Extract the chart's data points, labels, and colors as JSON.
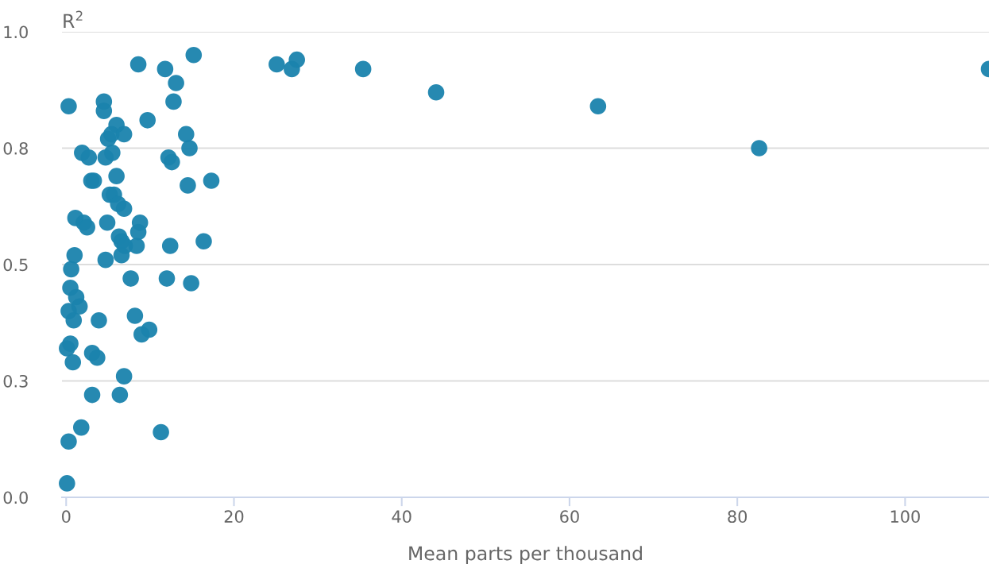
{
  "chart_data": {
    "type": "scatter",
    "xlabel": "Mean parts per thousand",
    "ylabel": "R$^{2}$",
    "x": [
      0.3,
      0.1,
      0.3,
      0.1,
      0.3,
      0.5,
      0.6,
      0.5,
      0.8,
      0.9,
      1.2,
      1.1,
      1.0,
      1.6,
      1.8,
      1.9,
      2.1,
      2.5,
      2.7,
      3.0,
      3.3,
      3.1,
      3.1,
      3.7,
      3.9,
      4.5,
      4.5,
      4.7,
      4.7,
      4.9,
      5.0,
      5.2,
      5.4,
      5.5,
      5.7,
      6.0,
      6.0,
      6.2,
      6.3,
      6.4,
      6.6,
      6.6,
      6.9,
      6.9,
      6.9,
      7.0,
      7.7,
      8.2,
      8.4,
      8.6,
      8.6,
      8.8,
      9.0,
      9.7,
      9.9,
      11.3,
      11.8,
      12.0,
      12.2,
      12.4,
      12.6,
      12.8,
      13.1,
      14.3,
      14.5,
      14.7,
      14.9,
      15.2,
      16.4,
      17.3,
      25.1,
      26.9,
      27.5,
      35.4,
      44.1,
      63.4,
      82.6,
      110
    ],
    "series": [
      {
        "color": "#1a83ad",
        "values": [
          0.84,
          0.03,
          0.12,
          0.32,
          0.4,
          0.45,
          0.49,
          0.33,
          0.29,
          0.38,
          0.43,
          0.6,
          0.52,
          0.41,
          0.15,
          0.74,
          0.59,
          0.58,
          0.73,
          0.68,
          0.68,
          0.22,
          0.31,
          0.3,
          0.38,
          0.85,
          0.83,
          0.51,
          0.73,
          0.59,
          0.77,
          0.65,
          0.78,
          0.74,
          0.65,
          0.8,
          0.69,
          0.63,
          0.56,
          0.22,
          0.52,
          0.55,
          0.62,
          0.78,
          0.26,
          0.54,
          0.47,
          0.39,
          0.54,
          0.57,
          0.93,
          0.59,
          0.35,
          0.81,
          0.36,
          0.14,
          0.92,
          0.47,
          0.73,
          0.54,
          0.72,
          0.85,
          0.89,
          0.78,
          0.67,
          0.75,
          0.46,
          0.95,
          0.55,
          0.68,
          0.93,
          0.92,
          0.94,
          0.92,
          0.87,
          0.84,
          0.75,
          0.92
        ]
      }
    ],
    "xlim": [
      -0.5,
      110
    ],
    "xticks": [
      0,
      20,
      40,
      60,
      80,
      100
    ],
    "ylim": [
      0,
      1.0
    ],
    "yticks": [
      {
        "value": 0,
        "label": "0.0"
      },
      {
        "value": 0.25,
        "label": "0.3"
      },
      {
        "value": 0.5,
        "label": "0.5"
      },
      {
        "value": 0.75,
        "label": "0.8"
      },
      {
        "value": 1.0,
        "label": "1.0"
      }
    ],
    "grid": "y",
    "marker": "circle",
    "legend": false
  }
}
